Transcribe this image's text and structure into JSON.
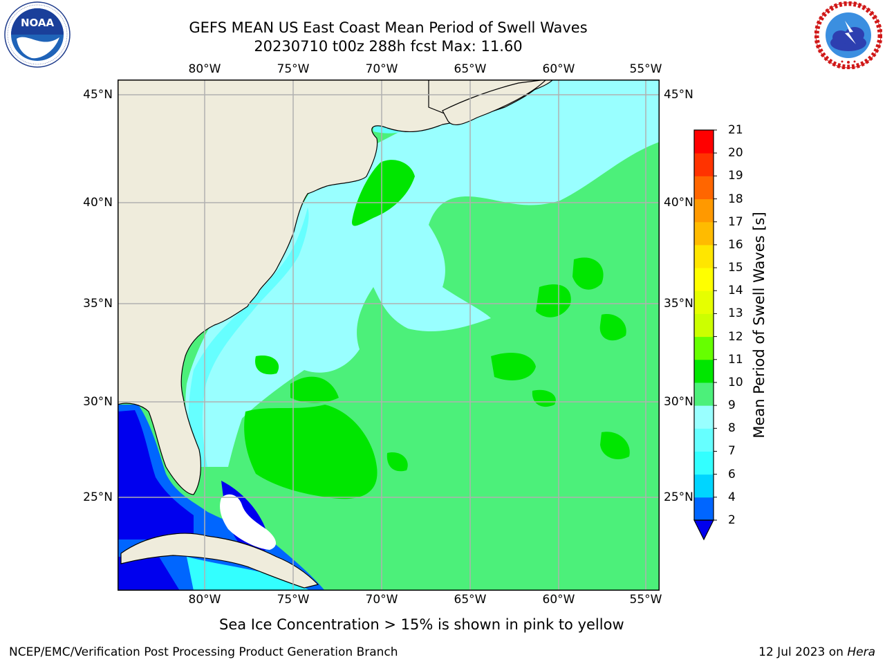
{
  "header": {
    "title_line1": "GEFS MEAN US East Coast Mean Period of Swell Waves",
    "title_line2": "20230710 t00z 288h fcst   Max: 11.60"
  },
  "logos": {
    "left": {
      "name": "NOAA",
      "text": "NOAA",
      "ring_text": "NATIONAL OCEANIC AND ATMOSPHERIC ADMINISTRATION · U.S. DEPARTMENT OF COMMERCE"
    },
    "right": {
      "name": "National Weather Service",
      "ring_text": "NATIONAL WEATHER SERVICE"
    }
  },
  "map": {
    "lon_labels": [
      "80°W",
      "75°W",
      "70°W",
      "65°W",
      "60°W",
      "55°W"
    ],
    "lat_labels": [
      "45°N",
      "40°N",
      "35°N",
      "30°N",
      "25°N"
    ],
    "colors": {
      "land": "#efecdc",
      "ocean_base": "#4cf07a",
      "grid": "#b0b0b0"
    }
  },
  "colorbar": {
    "title": "Mean Period of Swell Waves [s]",
    "ticks": [
      "2",
      "4",
      "6",
      "7",
      "8",
      "9",
      "10",
      "11",
      "12",
      "13",
      "14",
      "15",
      "16",
      "17",
      "18",
      "19",
      "20",
      "21"
    ],
    "bins": [
      {
        "label": "2-4",
        "color": "#0066ff"
      },
      {
        "label": "4-6",
        "color": "#00d5ff"
      },
      {
        "label": "6-7",
        "color": "#33ffff"
      },
      {
        "label": "7-8",
        "color": "#66ffff"
      },
      {
        "label": "8-9",
        "color": "#99ffff"
      },
      {
        "label": "9-10",
        "color": "#4cf07a"
      },
      {
        "label": "10-11",
        "color": "#00e600"
      },
      {
        "label": "11-12",
        "color": "#66ff00"
      },
      {
        "label": "12-13",
        "color": "#ccff00"
      },
      {
        "label": "13-14",
        "color": "#e6ff00"
      },
      {
        "label": "14-15",
        "color": "#ffff00"
      },
      {
        "label": "15-16",
        "color": "#ffe600"
      },
      {
        "label": "16-17",
        "color": "#ffbb00"
      },
      {
        "label": "17-18",
        "color": "#ff9900"
      },
      {
        "label": "18-19",
        "color": "#ff6600"
      },
      {
        "label": "19-20",
        "color": "#ff3300"
      },
      {
        "label": "20-21",
        "color": "#ff0000"
      }
    ],
    "under_color": "#0000ee"
  },
  "note": "Sea Ice Concentration > 15% is shown in pink to yellow",
  "footer": {
    "left": "NCEP/EMC/Verification Post Processing Product Generation Branch",
    "right_prefix": "12 Jul 2023 on ",
    "right_host": "Hera"
  }
}
